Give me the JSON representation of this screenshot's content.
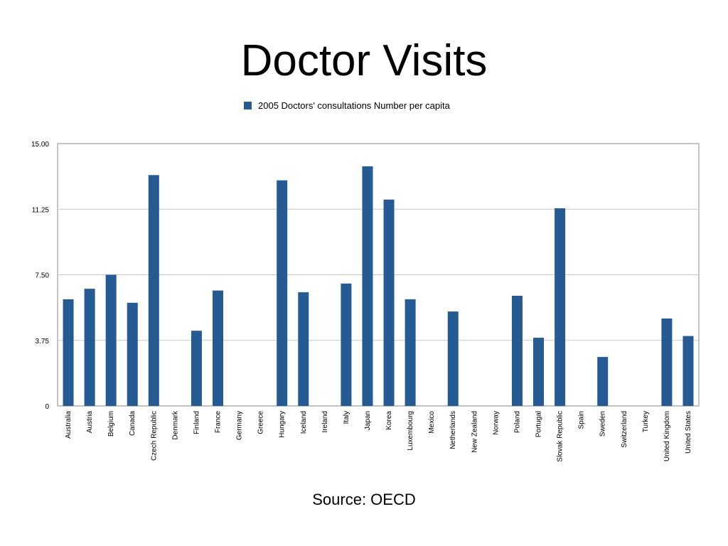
{
  "slide": {
    "title": "Doctor Visits",
    "source": "Source: OECD"
  },
  "colors": {
    "bar": "#255a93",
    "grid": "#c8c8c8",
    "axis": "#888888"
  },
  "chart_data": {
    "type": "bar",
    "title": "",
    "xlabel": "",
    "ylabel": "",
    "ylim": [
      0,
      15
    ],
    "yticks": [
      "0",
      "3.75",
      "7.50",
      "11.25",
      "15.00"
    ],
    "ytick_values": [
      0,
      3.75,
      7.5,
      11.25,
      15
    ],
    "grid": true,
    "legend_position": "top-center",
    "categories": [
      "Australia",
      "Austria",
      "Belgium",
      "Canada",
      "Czech Republic",
      "Denmark",
      "Finland",
      "France",
      "Germany",
      "Greece",
      "Hungary",
      "Iceland",
      "Ireland",
      "Italy",
      "Japan",
      "Korea",
      "Luxembourg",
      "Mexico",
      "Netherlands",
      "New Zealand",
      "Norway",
      "Poland",
      "Portugal",
      "Slovak Republic",
      "Spain",
      "Sweden",
      "Switzerland",
      "Turkey",
      "United Kingdom",
      "United States"
    ],
    "series": [
      {
        "name": "2005 Doctors' consultations Number per capita",
        "values": [
          6.1,
          6.7,
          7.5,
          5.9,
          13.2,
          null,
          4.3,
          6.6,
          null,
          null,
          12.9,
          6.5,
          null,
          7.0,
          13.7,
          11.8,
          6.1,
          null,
          5.4,
          null,
          null,
          6.3,
          3.9,
          11.3,
          null,
          2.8,
          null,
          null,
          5.0,
          4.0
        ]
      }
    ]
  }
}
